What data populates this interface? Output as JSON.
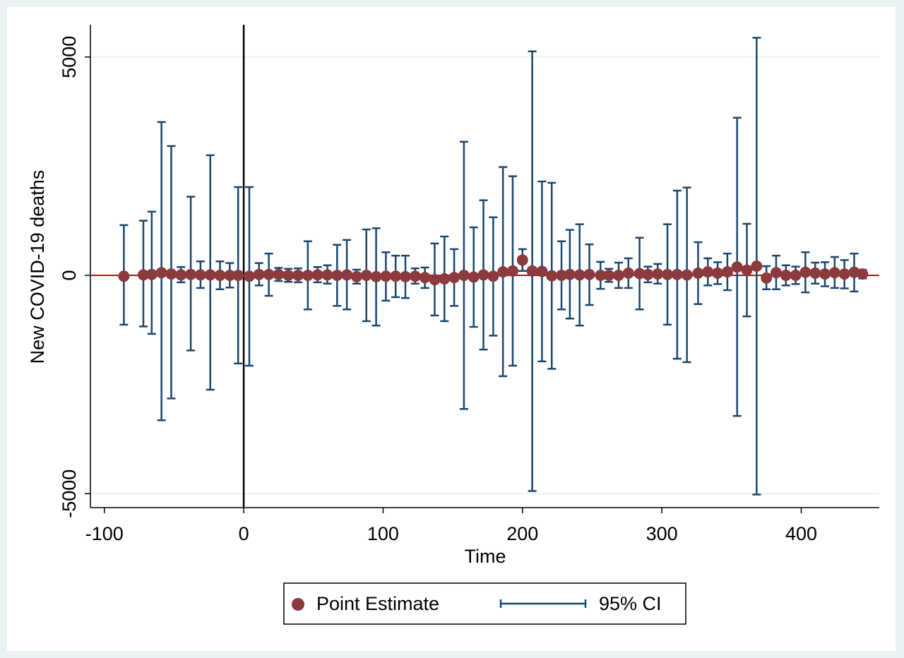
{
  "chart_data": {
    "type": "errorbar",
    "xlabel": "Time",
    "ylabel": "New COVID-19 deaths",
    "xlim": [
      -110,
      456
    ],
    "ylim": [
      -5320,
      5740
    ],
    "xticks": [
      -100,
      0,
      100,
      200,
      300,
      400
    ],
    "yticks": [
      -5000,
      0,
      5000
    ],
    "grid": true,
    "xline": 0,
    "yline": 0,
    "legend": "bottom",
    "x": [
      -86,
      -72,
      -66,
      -59,
      -52,
      -45,
      -38,
      -31,
      -24,
      -17,
      -10,
      -4,
      4,
      11,
      18,
      25,
      32,
      39,
      46,
      53,
      60,
      67,
      74,
      81,
      88,
      95,
      102,
      109,
      116,
      123,
      130,
      137,
      144,
      151,
      158,
      165,
      172,
      179,
      186,
      193,
      200,
      207,
      214,
      221,
      228,
      234,
      241,
      248,
      256,
      262,
      269,
      276,
      284,
      290,
      297,
      304,
      311,
      318,
      326,
      333,
      340,
      347,
      354,
      361,
      368,
      375,
      382,
      389,
      396,
      403,
      410,
      417,
      424,
      431,
      438,
      444
    ],
    "series": [
      {
        "name": "Point Estimate",
        "color": "#8b3a3e",
        "values": [
          -20,
          10,
          20,
          60,
          30,
          10,
          20,
          10,
          10,
          0,
          0,
          0,
          -20,
          20,
          20,
          20,
          0,
          0,
          0,
          10,
          10,
          0,
          10,
          -30,
          0,
          -30,
          -20,
          -20,
          -30,
          -20,
          -50,
          -100,
          -80,
          -50,
          0,
          -40,
          10,
          -20,
          80,
          100,
          350,
          100,
          90,
          -10,
          0,
          20,
          10,
          20,
          0,
          0,
          0,
          50,
          40,
          20,
          30,
          20,
          20,
          10,
          50,
          80,
          50,
          80,
          190,
          120,
          210,
          -60,
          60,
          0,
          0,
          70,
          50,
          30,
          60,
          30,
          70,
          30
        ]
      },
      {
        "name": "95% CI",
        "color": "#1a476f",
        "upper": [
          1150,
          1250,
          1460,
          3510,
          2960,
          190,
          1800,
          320,
          2750,
          320,
          280,
          2020,
          2020,
          280,
          500,
          170,
          150,
          160,
          780,
          190,
          230,
          700,
          810,
          130,
          1050,
          1080,
          530,
          450,
          450,
          160,
          180,
          730,
          890,
          600,
          3060,
          1100,
          1720,
          1330,
          2480,
          2270,
          600,
          5130,
          2150,
          2120,
          780,
          1040,
          1170,
          710,
          310,
          150,
          290,
          390,
          860,
          200,
          260,
          1170,
          1940,
          2010,
          760,
          390,
          300,
          500,
          3610,
          1180,
          5440,
          210,
          450,
          230,
          200,
          530,
          290,
          300,
          420,
          350,
          500,
          130
        ],
        "lower": [
          -1130,
          -1170,
          -1340,
          -3320,
          -2820,
          -160,
          -1720,
          -290,
          -2620,
          -320,
          -280,
          -2020,
          -2070,
          -230,
          -470,
          -130,
          -150,
          -160,
          -780,
          -160,
          -190,
          -700,
          -780,
          -190,
          -1050,
          -1150,
          -580,
          -500,
          -520,
          -190,
          -290,
          -920,
          -1050,
          -700,
          -3060,
          -1180,
          -1700,
          -1380,
          -2310,
          -2070,
          100,
          -4940,
          -1970,
          -2140,
          -780,
          -990,
          -1150,
          -680,
          -310,
          -150,
          -290,
          -290,
          -780,
          -160,
          -190,
          -1130,
          -1910,
          -1990,
          -660,
          -230,
          -200,
          -340,
          -3220,
          -940,
          -5020,
          -320,
          -320,
          -230,
          -200,
          -390,
          -190,
          -250,
          -290,
          -300,
          -370,
          -70
        ]
      }
    ]
  }
}
